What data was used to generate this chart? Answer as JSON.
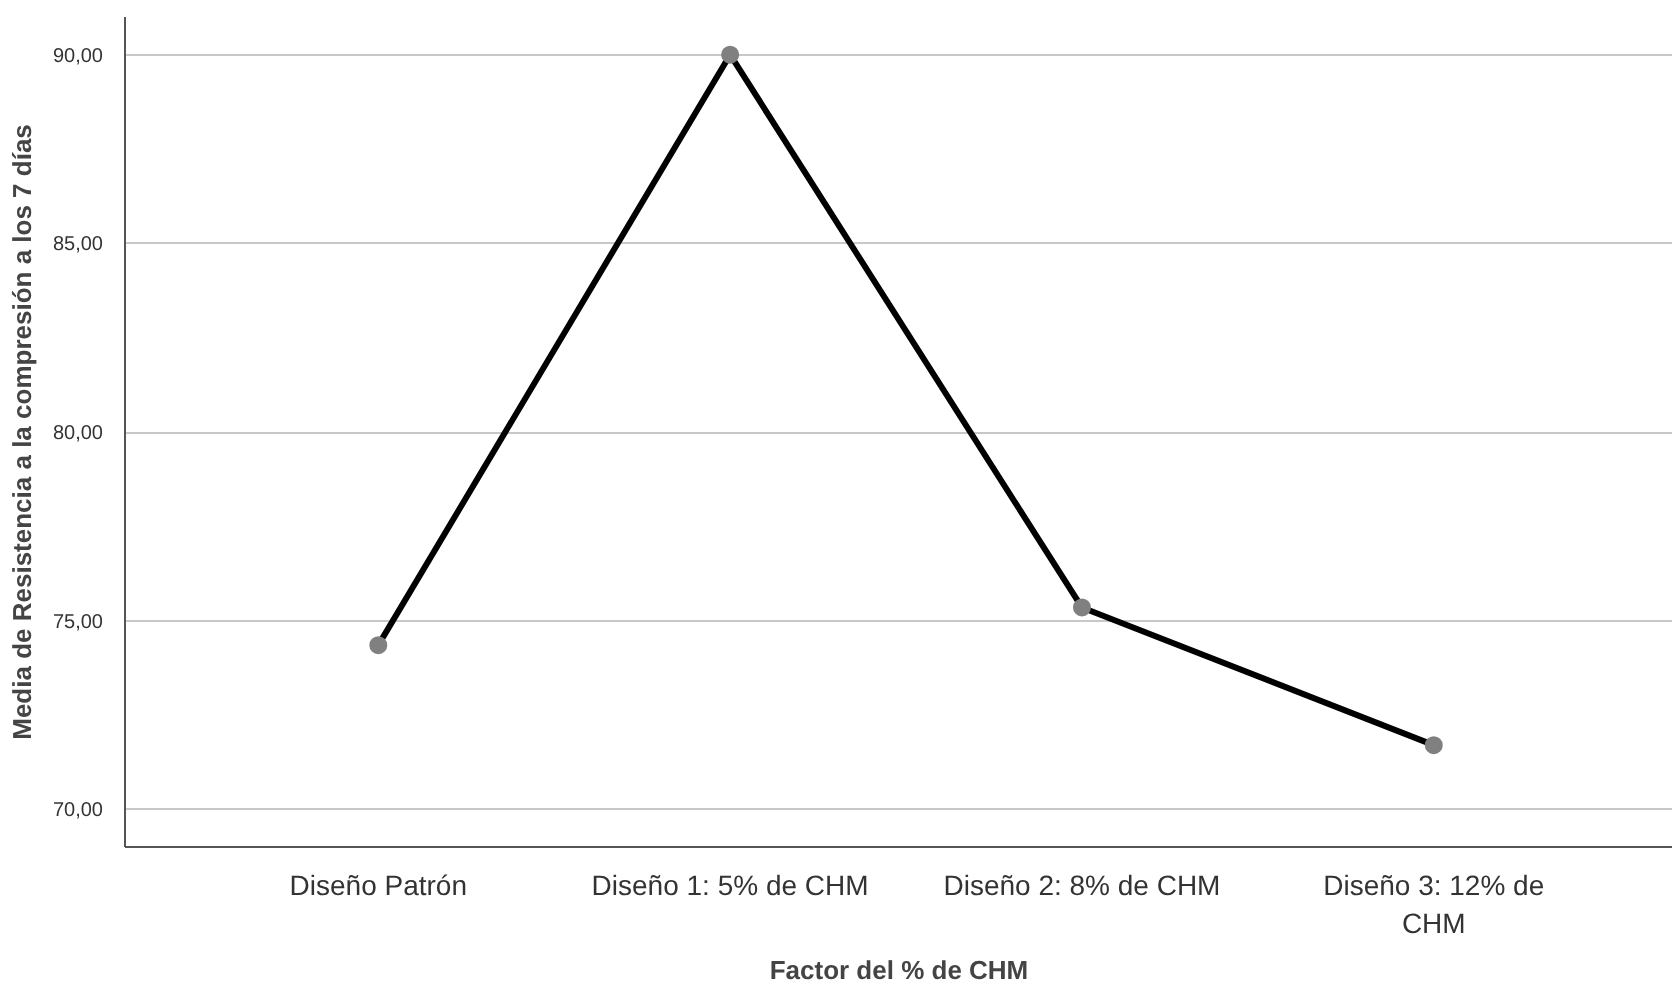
{
  "chart_data": {
    "type": "line",
    "xlabel": "Factor del % de CHM",
    "ylabel": "Media de Resistencia a la compresión a los 7 días",
    "categories": [
      "Diseño Patrón",
      "Diseño 1: 5% de CHM",
      "Diseño 2: 8% de CHM",
      "Diseño 3: 12% de\nCHM"
    ],
    "series": [
      {
        "color": "#000000",
        "values": [
          74.35,
          90.0,
          75.35,
          71.7
        ]
      }
    ],
    "ylim": [
      69.0,
      91.0
    ],
    "yticks": [
      {
        "value": 70,
        "label": "70,00"
      },
      {
        "value": 75,
        "label": "75,00"
      },
      {
        "value": 80,
        "label": "80,00"
      },
      {
        "value": 85,
        "label": "85,00"
      },
      {
        "value": 90,
        "label": "90,00"
      }
    ],
    "grid": "y",
    "marker": "circle",
    "line_style": "solid"
  }
}
